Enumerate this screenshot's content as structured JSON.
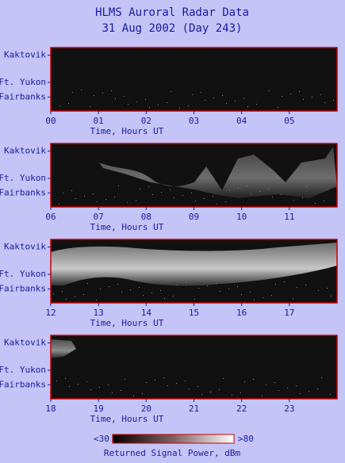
{
  "title": "HLMS Auroral Radar Data",
  "subtitle": "31 Aug 2002 (Day 243)",
  "chart_data": [
    {
      "type": "heatmap",
      "categories": [
        "Kaktovik",
        "Ft. Yukon",
        "Fairbanks"
      ],
      "xlim": [
        0,
        6
      ],
      "xticks": [
        {
          "value": 0,
          "label": "00"
        },
        {
          "value": 1,
          "label": "01"
        },
        {
          "value": 2,
          "label": "02"
        },
        {
          "value": 3,
          "label": "03"
        },
        {
          "value": 4,
          "label": "04"
        },
        {
          "value": 5,
          "label": "05"
        }
      ],
      "xlabel": "Time, Hours UT"
    },
    {
      "type": "heatmap",
      "categories": [
        "Kaktovik",
        "Ft. Yukon",
        "Fairbanks"
      ],
      "xlim": [
        6,
        12
      ],
      "xticks": [
        {
          "value": 6,
          "label": "06"
        },
        {
          "value": 7,
          "label": "07"
        },
        {
          "value": 8,
          "label": "08"
        },
        {
          "value": 9,
          "label": "09"
        },
        10,
        11
      ],
      "xlabel": "Time, Hours UT"
    },
    {
      "type": "heatmap",
      "categories": [
        "Kaktovik",
        "Ft. Yukon",
        "Fairbanks"
      ],
      "xlim": [
        12,
        18
      ],
      "xticks": [
        12,
        13,
        14,
        15,
        16,
        17
      ],
      "xlabel": "Time, Hours UT"
    },
    {
      "type": "heatmap",
      "categories": [
        "Kaktovik",
        "Ft. Yukon",
        "Fairbanks"
      ],
      "xlim": [
        18,
        24
      ],
      "xticks": [
        18,
        19,
        20,
        21,
        22,
        23
      ],
      "xlabel": "Time, Hours UT"
    }
  ],
  "colorbar": {
    "min_label": "<30",
    "max_label": ">80",
    "label": "Returned Signal Power, dBm"
  }
}
